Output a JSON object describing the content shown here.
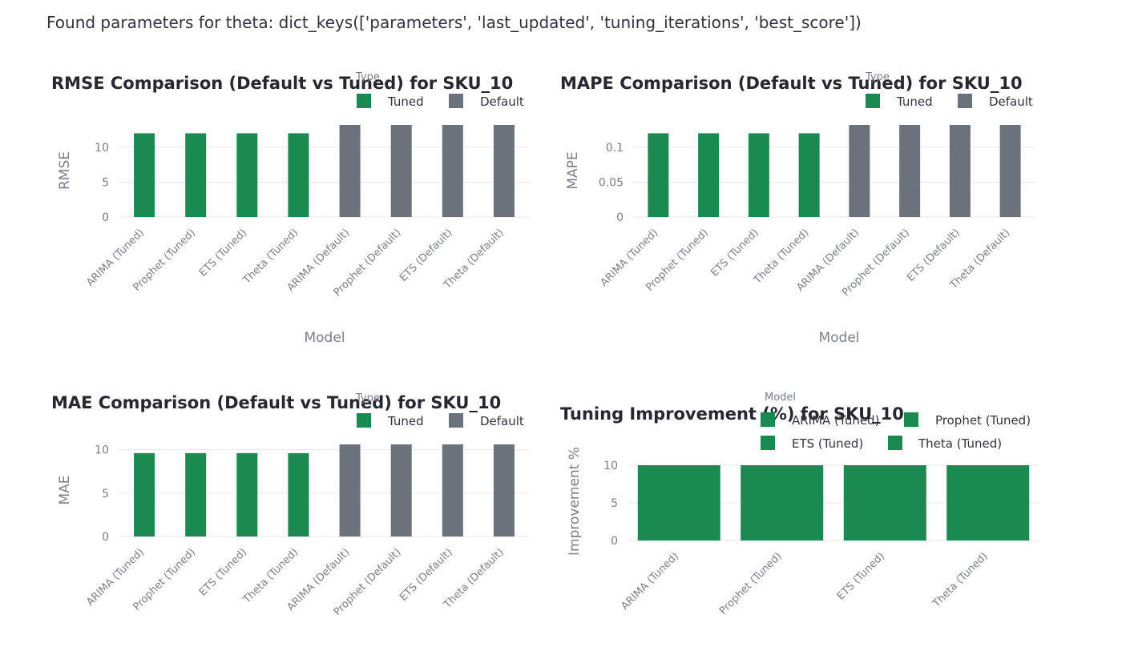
{
  "log": {
    "caption": "Found parameters for theta: dict_keys(['parameters', 'last_updated', 'tuning_iterations', 'best_score'])"
  },
  "colors": {
    "tuned": "#1b8a52",
    "default": "#6b727b",
    "grid": "#e6e9ef"
  },
  "chart_data": [
    {
      "type": "bar",
      "title": "RMSE Comparison (Default vs Tuned) for SKU_10",
      "xlabel": "Model",
      "ylabel": "RMSE",
      "categories": [
        "ARIMA (Tuned)",
        "Prophet (Tuned)",
        "ETS (Tuned)",
        "Theta (Tuned)",
        "ARIMA (Default)",
        "Prophet (Default)",
        "ETS (Default)",
        "Theta (Default)"
      ],
      "values": [
        12,
        12,
        12,
        12,
        13.2,
        13.2,
        13.2,
        13.2
      ],
      "colors": [
        "tuned",
        "tuned",
        "tuned",
        "tuned",
        "default",
        "default",
        "default",
        "default"
      ],
      "yticks": [
        0,
        5,
        10
      ],
      "ytick_labels": [
        "0",
        "5",
        "10"
      ],
      "ylim": [
        0,
        13.2
      ],
      "legend": {
        "title": "Type",
        "entries": [
          {
            "name": "Tuned",
            "color": "tuned"
          },
          {
            "name": "Default",
            "color": "default"
          }
        ]
      },
      "grid": true
    },
    {
      "type": "bar",
      "title": "MAPE Comparison (Default vs Tuned) for SKU_10",
      "xlabel": "Model",
      "ylabel": "MAPE",
      "categories": [
        "ARIMA (Tuned)",
        "Prophet (Tuned)",
        "ETS (Tuned)",
        "Theta (Tuned)",
        "ARIMA (Default)",
        "Prophet (Default)",
        "ETS (Default)",
        "Theta (Default)"
      ],
      "values": [
        0.12,
        0.12,
        0.12,
        0.12,
        0.132,
        0.132,
        0.132,
        0.132
      ],
      "colors": [
        "tuned",
        "tuned",
        "tuned",
        "tuned",
        "default",
        "default",
        "default",
        "default"
      ],
      "yticks": [
        0,
        0.05,
        0.1
      ],
      "ytick_labels": [
        "0",
        "0.05",
        "0.1"
      ],
      "ylim": [
        0,
        0.132
      ],
      "legend": {
        "title": "Type",
        "entries": [
          {
            "name": "Tuned",
            "color": "tuned"
          },
          {
            "name": "Default",
            "color": "default"
          }
        ]
      },
      "grid": true
    },
    {
      "type": "bar",
      "title": "MAE Comparison (Default vs Tuned) for SKU_10",
      "xlabel": "",
      "ylabel": "MAE",
      "categories": [
        "ARIMA (Tuned)",
        "Prophet (Tuned)",
        "ETS (Tuned)",
        "Theta (Tuned)",
        "ARIMA (Default)",
        "Prophet (Default)",
        "ETS (Default)",
        "Theta (Default)"
      ],
      "values": [
        9.6,
        9.6,
        9.6,
        9.6,
        10.6,
        10.6,
        10.6,
        10.6
      ],
      "colors": [
        "tuned",
        "tuned",
        "tuned",
        "tuned",
        "default",
        "default",
        "default",
        "default"
      ],
      "yticks": [
        0,
        5,
        10
      ],
      "ytick_labels": [
        "0",
        "5",
        "10"
      ],
      "ylim": [
        0,
        10.6
      ],
      "legend": {
        "title": "Type",
        "entries": [
          {
            "name": "Tuned",
            "color": "tuned"
          },
          {
            "name": "Default",
            "color": "default"
          }
        ]
      },
      "grid": true
    },
    {
      "type": "bar",
      "title": "Tuning Improvement (%) for SKU_10",
      "xlabel": "",
      "ylabel": "Improvement %",
      "categories": [
        "ARIMA (Tuned)",
        "Prophet (Tuned)",
        "ETS (Tuned)",
        "Theta (Tuned)"
      ],
      "values": [
        10,
        10,
        10,
        10
      ],
      "colors": [
        "tuned",
        "tuned",
        "tuned",
        "tuned"
      ],
      "yticks": [
        0,
        5,
        10
      ],
      "ytick_labels": [
        "0",
        "5",
        "10"
      ],
      "ylim": [
        0,
        10
      ],
      "legend": {
        "title": "Model",
        "entries": [
          {
            "name": "ARIMA (Tuned)",
            "color": "tuned"
          },
          {
            "name": "Prophet (Tuned)",
            "color": "tuned"
          },
          {
            "name": "ETS (Tuned)",
            "color": "tuned"
          },
          {
            "name": "Theta (Tuned)",
            "color": "tuned"
          }
        ]
      },
      "grid": true
    }
  ]
}
